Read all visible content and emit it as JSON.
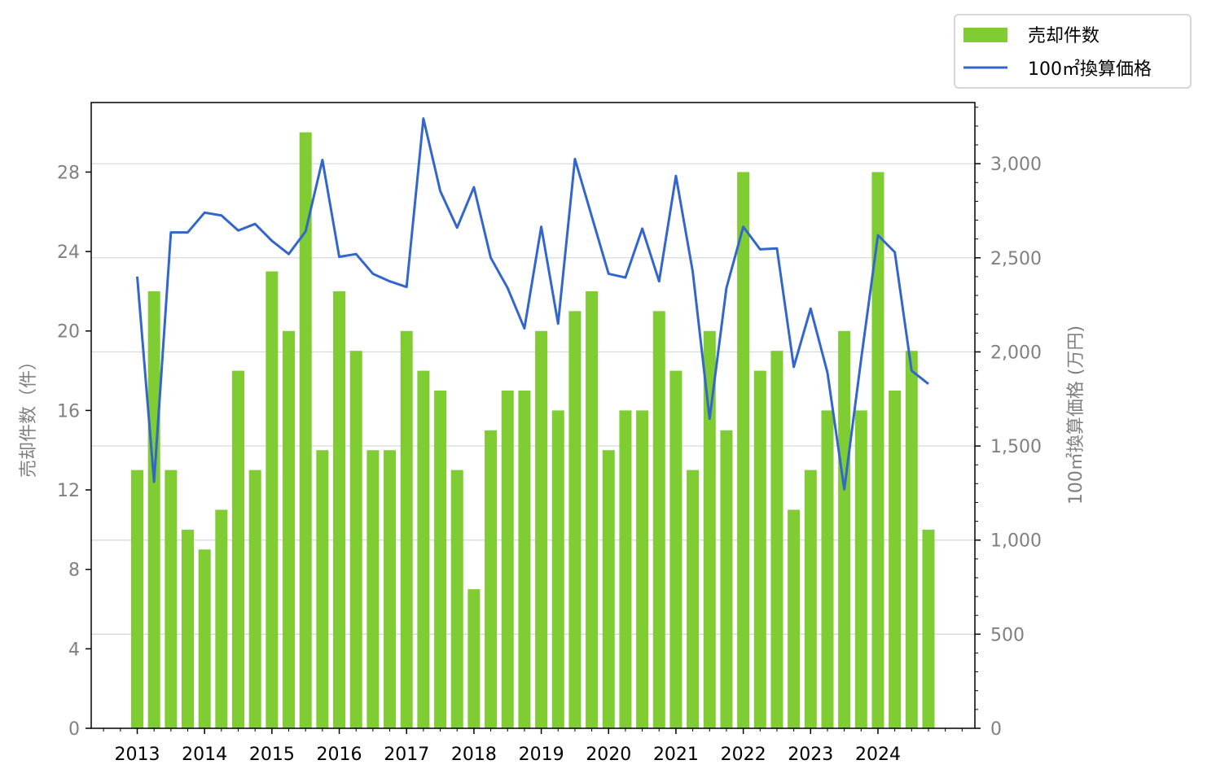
{
  "chart_data": {
    "type": "bar",
    "x_ticks": [
      "2013",
      "2014",
      "2015",
      "2016",
      "2017",
      "2018",
      "2019",
      "2020",
      "2021",
      "2022",
      "2023",
      "2024"
    ],
    "series": [
      {
        "name": "売却件数",
        "type": "bar",
        "axis": "left",
        "color": "#7fcc33",
        "values": [
          13,
          22,
          13,
          10,
          9,
          11,
          18,
          13,
          23,
          20,
          30,
          14,
          22,
          19,
          14,
          14,
          20,
          18,
          17,
          13,
          7,
          15,
          17,
          17,
          20,
          16,
          21,
          22,
          14,
          16,
          16,
          21,
          18,
          13,
          20,
          15,
          28,
          18,
          19,
          11,
          13,
          16,
          20,
          16,
          28,
          17,
          19,
          10
        ]
      },
      {
        "name": "100㎡換算価格",
        "type": "line",
        "axis": "right",
        "color": "#3366cc",
        "values": [
          2400,
          1310,
          2635,
          2635,
          2740,
          2725,
          2645,
          2680,
          2590,
          2520,
          2640,
          3020,
          2505,
          2520,
          2415,
          2375,
          2345,
          3240,
          2855,
          2660,
          2875,
          2500,
          2340,
          2125,
          2665,
          2150,
          3025,
          2720,
          2415,
          2395,
          2655,
          2375,
          2935,
          2425,
          1645,
          2340,
          2665,
          2545,
          2550,
          1920,
          2230,
          1890,
          1270,
          1960,
          2620,
          2530,
          1900,
          1830
        ]
      }
    ],
    "y_left": {
      "label": "売却件数（件）",
      "lim": [
        0,
        31.5
      ],
      "ticks": [
        "0",
        "4",
        "8",
        "12",
        "16",
        "20",
        "24",
        "28"
      ]
    },
    "y_right": {
      "label": "100㎡換算価格 (万円)",
      "lim": [
        0,
        3325
      ],
      "ticks": [
        "0",
        "500",
        "1,000",
        "1,500",
        "2,000",
        "2,500",
        "3,000"
      ]
    },
    "grid": "horizontal (right axis)",
    "legend": "top-right, outside plot"
  }
}
